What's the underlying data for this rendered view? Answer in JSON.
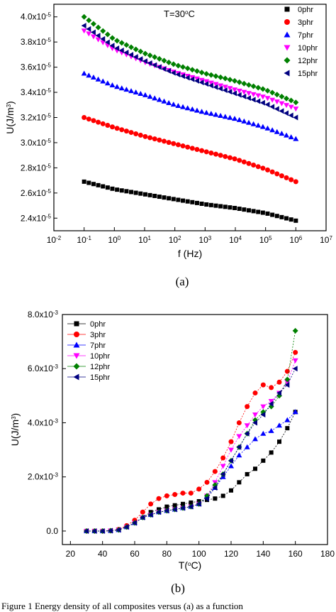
{
  "chart_data": [
    {
      "type": "scatter",
      "panel_label": "(a)",
      "annotation": "T=30oC",
      "xlabel": "f (Hz)",
      "ylabel": "U(J/m3)",
      "xscale": "log",
      "xlim": [
        0.01,
        10000000
      ],
      "ylim": [
        2.3e-05,
        4.1e-05
      ],
      "x_tick_labels": [
        "10-2",
        "10-1",
        "100",
        "101",
        "102",
        "103",
        "104",
        "105",
        "106",
        "107"
      ],
      "y_tick_labels": [
        "2.4x10-5",
        "2.6x10-5",
        "2.8x10-5",
        "3.0x10-5",
        "3.2x10-5",
        "3.4x10-5",
        "3.6x10-5",
        "3.8x10-5",
        "4.0x10-5"
      ],
      "legend_position": "top-right",
      "x": [
        0.1,
        1,
        10,
        100,
        1000,
        10000,
        100000,
        1000000
      ],
      "series": [
        {
          "name": "0phr",
          "marker": "square",
          "color": "#000000",
          "values": [
            2.69e-05,
            2.63e-05,
            2.59e-05,
            2.55e-05,
            2.51e-05,
            2.48e-05,
            2.44e-05,
            2.38e-05
          ]
        },
        {
          "name": "3phr",
          "marker": "circle",
          "color": "#ff0000",
          "values": [
            3.2e-05,
            3.12e-05,
            3.05e-05,
            2.99e-05,
            2.93e-05,
            2.87e-05,
            2.79e-05,
            2.69e-05
          ]
        },
        {
          "name": "7phr",
          "marker": "triangle-up",
          "color": "#0000ff",
          "values": [
            3.55e-05,
            3.45e-05,
            3.38e-05,
            3.3e-05,
            3.24e-05,
            3.19e-05,
            3.12e-05,
            3.03e-05
          ]
        },
        {
          "name": "10phr",
          "marker": "triangle-down",
          "color": "#ff00ff",
          "values": [
            3.89e-05,
            3.74e-05,
            3.64e-05,
            3.56e-05,
            3.49e-05,
            3.42e-05,
            3.36e-05,
            3.27e-05
          ]
        },
        {
          "name": "12phr",
          "marker": "diamond",
          "color": "#008000",
          "values": [
            4e-05,
            3.82e-05,
            3.71e-05,
            3.62e-05,
            3.55e-05,
            3.49e-05,
            3.42e-05,
            3.32e-05
          ]
        },
        {
          "name": "15phr",
          "marker": "triangle-left",
          "color": "#000080",
          "values": [
            3.93e-05,
            3.76e-05,
            3.65e-05,
            3.55e-05,
            3.47e-05,
            3.39e-05,
            3.31e-05,
            3.2e-05
          ]
        }
      ]
    },
    {
      "type": "line",
      "panel_label": "(b)",
      "xlabel": "T(oC)",
      "ylabel": "U(J/m3)",
      "xlim": [
        15,
        180
      ],
      "ylim": [
        -0.0005,
        0.008
      ],
      "x_tick_labels": [
        "20",
        "40",
        "60",
        "80",
        "100",
        "120",
        "140",
        "160",
        "180"
      ],
      "y_tick_labels": [
        "0.0",
        "2.0x10-3",
        "4.0x10-3",
        "6.0x10-3",
        "8.0x10-3"
      ],
      "legend_position": "top-left",
      "x": [
        30,
        35,
        40,
        45,
        50,
        55,
        60,
        65,
        70,
        75,
        80,
        85,
        90,
        95,
        100,
        105,
        110,
        115,
        120,
        125,
        130,
        135,
        140,
        145,
        150,
        155,
        160
      ],
      "series": [
        {
          "name": "0phr",
          "marker": "square",
          "color": "#000000",
          "values": [
            0,
            0,
            0,
            1e-05,
            5e-05,
            0.00015,
            0.0003,
            0.0005,
            0.0007,
            0.0008,
            0.0009,
            0.00095,
            0.001,
            0.00105,
            0.0011,
            0.00115,
            0.0012,
            0.0013,
            0.0015,
            0.0018,
            0.0021,
            0.0023,
            0.0026,
            0.0029,
            0.0033,
            0.0038,
            0.0044
          ]
        },
        {
          "name": "3phr",
          "marker": "circle",
          "color": "#ff0000",
          "values": [
            0,
            0,
            0,
            1e-05,
            6e-05,
            0.0002,
            0.0004,
            0.0007,
            0.001,
            0.0012,
            0.0013,
            0.00135,
            0.0014,
            0.0014,
            0.00155,
            0.0018,
            0.0022,
            0.0027,
            0.0033,
            0.004,
            0.0046,
            0.0051,
            0.0054,
            0.0053,
            0.0055,
            0.0059,
            0.0066
          ]
        },
        {
          "name": "7phr",
          "marker": "triangle-up",
          "color": "#0000ff",
          "values": [
            0,
            0,
            0,
            1e-05,
            4e-05,
            0.00015,
            0.0003,
            0.0005,
            0.0006,
            0.0007,
            0.00075,
            0.0008,
            0.00085,
            0.0009,
            0.001,
            0.0013,
            0.0016,
            0.002,
            0.0024,
            0.0028,
            0.0031,
            0.0034,
            0.0036,
            0.0037,
            0.0039,
            0.0041,
            0.0044
          ]
        },
        {
          "name": "10phr",
          "marker": "triangle-down",
          "color": "#ff00ff",
          "values": [
            0,
            0,
            0,
            1e-05,
            4e-05,
            0.00015,
            0.0003,
            0.0005,
            0.0006,
            0.0007,
            0.00075,
            0.0008,
            0.00085,
            0.0009,
            0.001,
            0.0013,
            0.0018,
            0.0024,
            0.003,
            0.0035,
            0.0039,
            0.0043,
            0.0046,
            0.0048,
            0.0051,
            0.0055,
            0.0063
          ]
        },
        {
          "name": "12phr",
          "marker": "diamond",
          "color": "#008000",
          "values": [
            0,
            0,
            0,
            1e-05,
            4e-05,
            0.00015,
            0.0003,
            0.0005,
            0.0006,
            0.0007,
            0.00075,
            0.0008,
            0.00085,
            0.0009,
            0.001,
            0.0013,
            0.0017,
            0.0021,
            0.0026,
            0.0031,
            0.0036,
            0.0041,
            0.0044,
            0.0046,
            0.005,
            0.0056,
            0.0074
          ]
        },
        {
          "name": "15phr",
          "marker": "triangle-left",
          "color": "#000080",
          "values": [
            0,
            0,
            0,
            1e-05,
            4e-05,
            0.00015,
            0.0003,
            0.0005,
            0.0006,
            0.0007,
            0.00075,
            0.0008,
            0.00085,
            0.0009,
            0.001,
            0.0012,
            0.0016,
            0.0021,
            0.0026,
            0.0031,
            0.0036,
            0.004,
            0.0043,
            0.0047,
            0.0051,
            0.0054,
            0.006
          ]
        }
      ]
    }
  ],
  "caption_text": "Figure 1 Energy density of all composites versus (a) as a function"
}
